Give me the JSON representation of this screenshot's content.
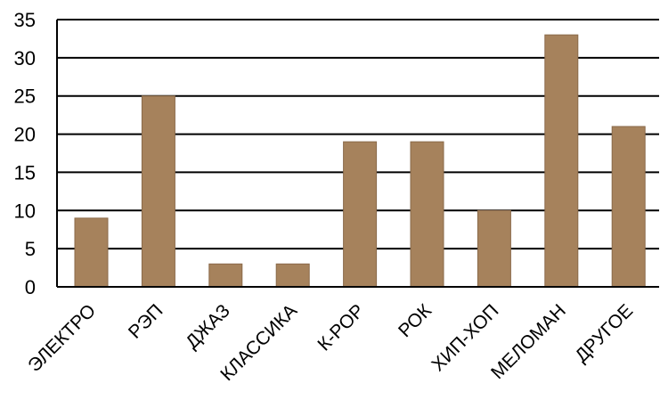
{
  "chart_data": {
    "type": "bar",
    "categories": [
      "ЭЛЕКТРО",
      "РЭП",
      "ДЖАЗ",
      "КЛАССИКА",
      "К-POP",
      "РОК",
      "ХИП-ХОП",
      "МЕЛОМАН",
      "ДРУГОЕ"
    ],
    "values": [
      9,
      25,
      3,
      3,
      19,
      19,
      10,
      33,
      21
    ],
    "ylim": [
      0,
      35
    ],
    "yticks": [
      0,
      5,
      10,
      15,
      20,
      25,
      30,
      35
    ],
    "grid": true,
    "legend": "none",
    "bar_color": "#a6825c"
  }
}
